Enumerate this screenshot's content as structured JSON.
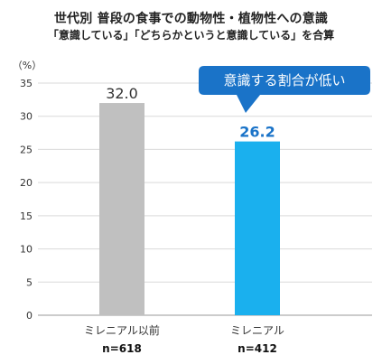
{
  "title": "世代別  普段の食事での動物性・植物性への意識",
  "subtitle": "「意識している」「どちらかというと意識している」を合算",
  "chart_data": {
    "type": "bar",
    "categories": [
      "ミレニアル以前",
      "ミレニアル"
    ],
    "sample_sizes": [
      "n=618",
      "n=412"
    ],
    "values": [
      32.0,
      26.2
    ],
    "value_labels": [
      "32.0",
      "26.2"
    ],
    "y_unit": "（%）",
    "ylim": [
      0,
      35
    ],
    "y_ticks": [
      "0",
      "5",
      "10",
      "15",
      "20",
      "25",
      "30",
      "35"
    ],
    "grid": true,
    "colors": [
      "#c0c0c0",
      "#1ab0ee"
    ],
    "callout": {
      "text": "意識する割合が低い",
      "color": "#1a73c8"
    }
  }
}
